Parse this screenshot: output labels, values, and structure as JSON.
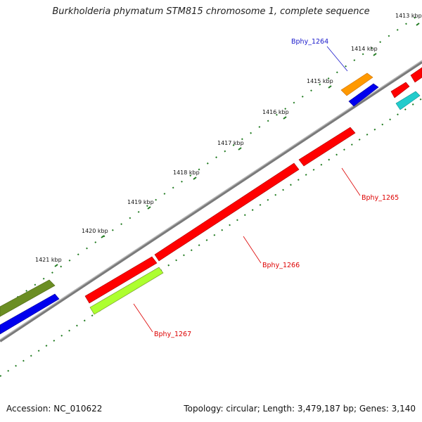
{
  "title": "Burkholderia phymatum STM815 chromosome 1, complete sequence",
  "footer": {
    "accession": "Accession: NC_010622",
    "summary": "Topology: circular; Length: 3,479,187 bp; Genes: 3,140"
  },
  "ticks": [
    {
      "label": "1413 kbp"
    },
    {
      "label": "1414 kbp"
    },
    {
      "label": "1415 kbp"
    },
    {
      "label": "1416 kbp"
    },
    {
      "label": "1417 kbp"
    },
    {
      "label": "1418 kbp"
    },
    {
      "label": "1419 kbp"
    },
    {
      "label": "1420 kbp"
    },
    {
      "label": "1421 kbp"
    }
  ],
  "genes": [
    {
      "label": "Bphy_1264",
      "color": "#1a1acc"
    },
    {
      "label": "Bphy_1265",
      "color": "#dd0000"
    },
    {
      "label": "Bphy_1266",
      "color": "#dd0000"
    },
    {
      "label": "Bphy_1267",
      "color": "#dd0000"
    }
  ],
  "colors": {
    "backbone": "#8c8c8c",
    "tick": "#1f7a1f",
    "red": "#ff0000",
    "blue": "#0000ee",
    "orange": "#ff9900",
    "cyan": "#22cccc",
    "olive": "#6b8e23",
    "lime": "#adff2f"
  }
}
